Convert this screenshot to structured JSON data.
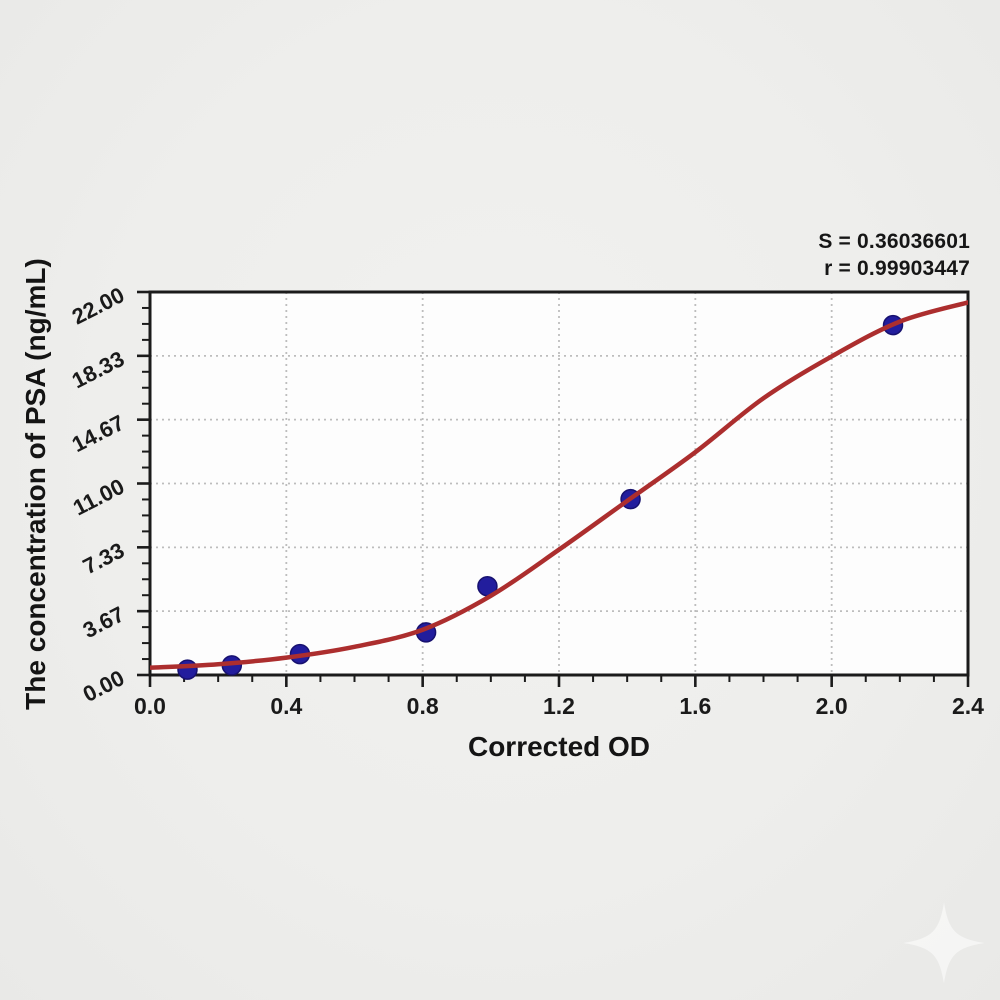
{
  "page": {
    "background": "#eeeeec"
  },
  "annotation": {
    "s_line": "S = 0.36036601",
    "r_line": "r = 0.99903447"
  },
  "chart_data": {
    "type": "scatter",
    "title": "",
    "xlabel": "Corrected OD",
    "ylabel": "The concentration of PSA (ng/mL)",
    "xlim": [
      0.0,
      2.4
    ],
    "ylim": [
      0.0,
      22.0
    ],
    "x_tick_values": [
      0.0,
      0.4,
      0.8,
      1.2,
      1.6,
      2.0,
      2.4
    ],
    "x_tick_labels": [
      "0.0",
      "0.4",
      "0.8",
      "1.2",
      "1.6",
      "2.0",
      "2.4"
    ],
    "y_tick_values": [
      0.0,
      3.667,
      7.333,
      11.0,
      14.667,
      18.333,
      22.0
    ],
    "y_tick_labels": [
      "0.00",
      "3.67",
      "7.33",
      "11.00",
      "14.67",
      "18.33",
      "22.00"
    ],
    "minor_ticks_per_interval": 3,
    "grid": "dotted major gridlines, both axes",
    "legend": "none",
    "series": [
      {
        "name": "standard-points",
        "type": "scatter",
        "x": [
          0.11,
          0.24,
          0.44,
          0.81,
          0.99,
          1.41,
          2.18
        ],
        "y": [
          0.31,
          0.55,
          1.2,
          2.45,
          5.1,
          10.1,
          20.1
        ]
      },
      {
        "name": "fitted-curve",
        "type": "line",
        "x": [
          0.0,
          0.2,
          0.4,
          0.6,
          0.8,
          1.0,
          1.2,
          1.4,
          1.6,
          1.8,
          2.0,
          2.2,
          2.4
        ],
        "y": [
          0.42,
          0.62,
          1.0,
          1.62,
          2.6,
          4.55,
          7.2,
          10.0,
          12.8,
          15.9,
          18.3,
          20.3,
          21.4
        ]
      }
    ],
    "stats": {
      "S": "0.36036601",
      "r": "0.99903447"
    },
    "colors": {
      "curve": "#ac2e2e",
      "point": "#221d9d",
      "point_edge": "#17116f",
      "grid": "#bdbdbd",
      "axis": "#1b1b1b",
      "text": "#161616",
      "plot_background": "#fdfdfd"
    }
  },
  "watermark": {
    "icon": "sparkle-star",
    "color": "#ffffff"
  }
}
